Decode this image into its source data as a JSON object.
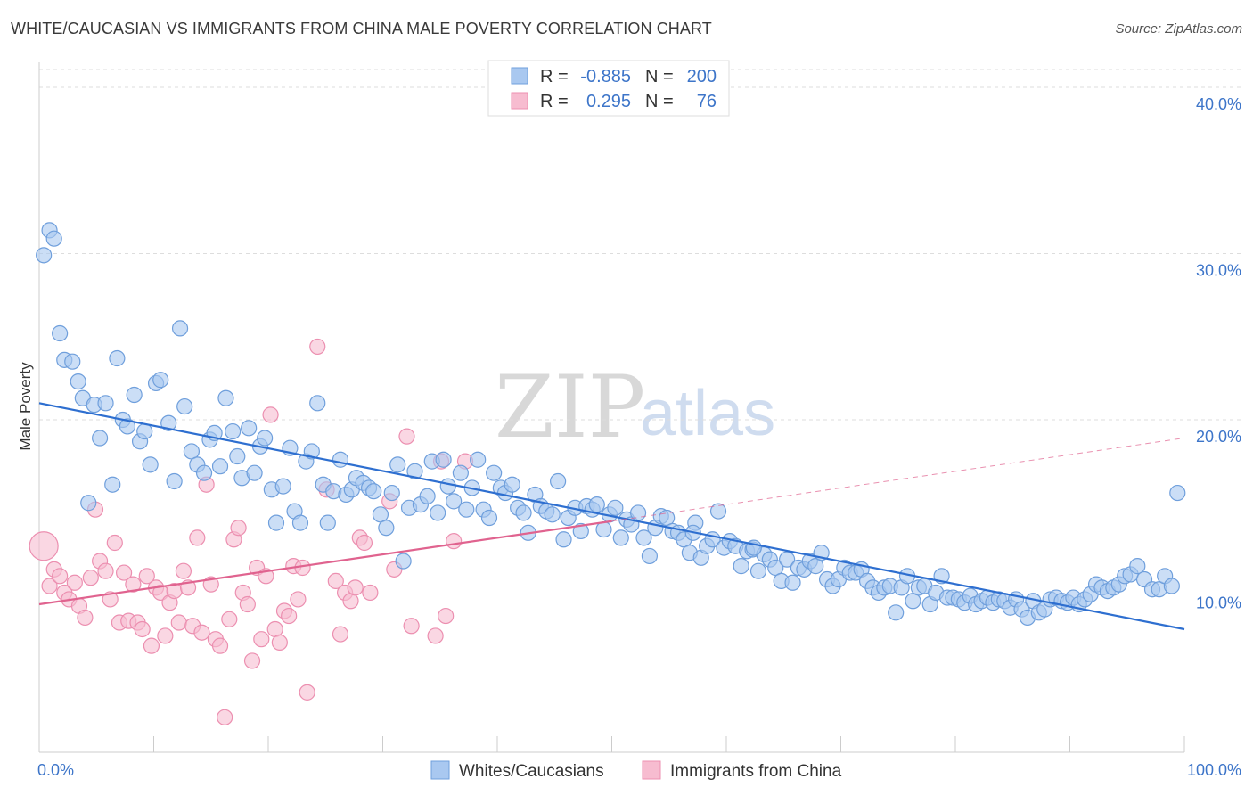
{
  "title": "WHITE/CAUCASIAN VS IMMIGRANTS FROM CHINA MALE POVERTY CORRELATION CHART",
  "source": "Source: ZipAtlas.com",
  "watermark": {
    "zip": "ZIP",
    "atlas": "atlas"
  },
  "colors": {
    "blue_fill": "#a9c8f0",
    "blue_stroke": "#6f9fdc",
    "blue_line": "#2e6fd0",
    "pink_fill": "#f7bcd0",
    "pink_stroke": "#ec8fb0",
    "pink_line": "#e0638f",
    "tick": "#3d75c9",
    "grid": "#dddddd"
  },
  "legend": {
    "rows": [
      {
        "r_label": "R =",
        "r_value": "-0.885",
        "n_label": "N =",
        "n_value": "200"
      },
      {
        "r_label": "R =",
        "r_value": "0.295",
        "n_label": "N =",
        "n_value": "76"
      }
    ]
  },
  "chart_data": {
    "type": "scatter",
    "xlabel": "",
    "ylabel": "Male Poverty",
    "xlim": [
      0,
      100
    ],
    "ylim": [
      0,
      41.5
    ],
    "x_tick_labels": [
      "0.0%",
      "100.0%"
    ],
    "y_ticks": [
      10,
      20,
      30,
      40
    ],
    "y_tick_labels": [
      "10.0%",
      "20.0%",
      "30.0%",
      "40.0%"
    ],
    "grid": "horizontal-dashed",
    "legend_position": "top-center",
    "series": [
      {
        "name": "Whites/Caucasians",
        "color": "#a9c8f0",
        "r": -0.885,
        "n": 200,
        "trend": {
          "x": [
            0,
            100
          ],
          "y": [
            21.0,
            7.4
          ],
          "style": "solid"
        },
        "points": [
          [
            0.4,
            29.9
          ],
          [
            0.9,
            31.4
          ],
          [
            1.3,
            30.9
          ],
          [
            1.8,
            25.2
          ],
          [
            2.2,
            23.6
          ],
          [
            2.9,
            23.5
          ],
          [
            3.4,
            22.3
          ],
          [
            3.8,
            21.3
          ],
          [
            4.3,
            15.0
          ],
          [
            4.8,
            20.9
          ],
          [
            5.3,
            18.9
          ],
          [
            5.8,
            21.0
          ],
          [
            6.4,
            16.1
          ],
          [
            6.8,
            23.7
          ],
          [
            7.3,
            20.0
          ],
          [
            7.7,
            19.6
          ],
          [
            8.3,
            21.5
          ],
          [
            8.8,
            18.7
          ],
          [
            9.2,
            19.3
          ],
          [
            9.7,
            17.3
          ],
          [
            10.2,
            22.2
          ],
          [
            10.6,
            22.4
          ],
          [
            11.3,
            19.8
          ],
          [
            11.8,
            16.3
          ],
          [
            12.3,
            25.5
          ],
          [
            12.7,
            20.8
          ],
          [
            13.3,
            18.1
          ],
          [
            13.8,
            17.3
          ],
          [
            14.4,
            16.8
          ],
          [
            14.9,
            18.8
          ],
          [
            15.3,
            19.2
          ],
          [
            15.8,
            17.2
          ],
          [
            16.3,
            21.3
          ],
          [
            16.9,
            19.3
          ],
          [
            17.3,
            17.8
          ],
          [
            17.7,
            16.5
          ],
          [
            18.3,
            19.5
          ],
          [
            18.8,
            16.8
          ],
          [
            19.3,
            18.4
          ],
          [
            19.7,
            18.9
          ],
          [
            20.3,
            15.8
          ],
          [
            20.7,
            13.8
          ],
          [
            21.3,
            16.0
          ],
          [
            21.9,
            18.3
          ],
          [
            22.3,
            14.5
          ],
          [
            22.8,
            13.8
          ],
          [
            23.3,
            17.5
          ],
          [
            23.8,
            18.1
          ],
          [
            24.3,
            21.0
          ],
          [
            24.8,
            16.1
          ],
          [
            25.2,
            13.8
          ],
          [
            25.7,
            15.7
          ],
          [
            26.3,
            17.6
          ],
          [
            26.8,
            15.5
          ],
          [
            27.3,
            15.8
          ],
          [
            27.7,
            16.5
          ],
          [
            28.3,
            16.2
          ],
          [
            28.8,
            15.9
          ],
          [
            29.2,
            15.7
          ],
          [
            29.8,
            14.3
          ],
          [
            30.3,
            13.5
          ],
          [
            30.8,
            15.6
          ],
          [
            31.3,
            17.3
          ],
          [
            31.8,
            11.5
          ],
          [
            32.3,
            14.7
          ],
          [
            32.8,
            16.9
          ],
          [
            33.3,
            14.9
          ],
          [
            33.9,
            15.4
          ],
          [
            34.3,
            17.5
          ],
          [
            34.8,
            14.4
          ],
          [
            35.3,
            17.6
          ],
          [
            35.7,
            16.0
          ],
          [
            36.2,
            15.1
          ],
          [
            36.8,
            16.8
          ],
          [
            37.3,
            14.6
          ],
          [
            37.8,
            15.9
          ],
          [
            38.3,
            17.6
          ],
          [
            38.8,
            14.6
          ],
          [
            39.3,
            14.1
          ],
          [
            39.7,
            16.8
          ],
          [
            40.3,
            15.9
          ],
          [
            40.7,
            15.6
          ],
          [
            41.3,
            16.1
          ],
          [
            41.8,
            14.7
          ],
          [
            42.3,
            14.4
          ],
          [
            42.7,
            13.2
          ],
          [
            43.3,
            15.5
          ],
          [
            43.8,
            14.8
          ],
          [
            44.3,
            14.5
          ],
          [
            44.8,
            14.3
          ],
          [
            45.3,
            16.3
          ],
          [
            45.8,
            12.8
          ],
          [
            46.2,
            14.1
          ],
          [
            46.8,
            14.7
          ],
          [
            47.3,
            13.3
          ],
          [
            47.8,
            14.8
          ],
          [
            48.3,
            14.6
          ],
          [
            48.7,
            14.9
          ],
          [
            49.3,
            13.4
          ],
          [
            49.8,
            14.3
          ],
          [
            50.3,
            14.7
          ],
          [
            50.8,
            12.9
          ],
          [
            51.3,
            14.0
          ],
          [
            51.7,
            13.7
          ],
          [
            52.3,
            14.4
          ],
          [
            52.8,
            12.9
          ],
          [
            53.3,
            11.8
          ],
          [
            53.8,
            13.5
          ],
          [
            54.3,
            14.2
          ],
          [
            54.8,
            14.1
          ],
          [
            55.3,
            13.3
          ],
          [
            55.8,
            13.2
          ],
          [
            56.3,
            12.8
          ],
          [
            56.8,
            12.0
          ],
          [
            57.3,
            13.8
          ],
          [
            57.8,
            11.7
          ],
          [
            58.3,
            12.4
          ],
          [
            58.8,
            12.8
          ],
          [
            59.3,
            14.5
          ],
          [
            59.8,
            12.3
          ],
          [
            60.3,
            12.7
          ],
          [
            60.8,
            12.4
          ],
          [
            61.3,
            11.2
          ],
          [
            61.8,
            12.1
          ],
          [
            62.3,
            12.2
          ],
          [
            62.8,
            10.9
          ],
          [
            63.3,
            11.9
          ],
          [
            63.8,
            11.6
          ],
          [
            64.3,
            11.1
          ],
          [
            64.8,
            10.3
          ],
          [
            65.3,
            11.6
          ],
          [
            65.8,
            10.2
          ],
          [
            66.3,
            11.1
          ],
          [
            66.8,
            11.0
          ],
          [
            67.3,
            11.5
          ],
          [
            67.8,
            11.2
          ],
          [
            68.3,
            12.0
          ],
          [
            68.8,
            10.4
          ],
          [
            69.3,
            10.0
          ],
          [
            69.8,
            10.4
          ],
          [
            70.3,
            11.1
          ],
          [
            70.8,
            10.8
          ],
          [
            71.3,
            10.8
          ],
          [
            71.8,
            11.0
          ],
          [
            72.3,
            10.3
          ],
          [
            72.8,
            9.9
          ],
          [
            73.3,
            9.6
          ],
          [
            73.8,
            9.9
          ],
          [
            74.3,
            10.0
          ],
          [
            74.8,
            8.4
          ],
          [
            75.3,
            9.9
          ],
          [
            75.8,
            10.6
          ],
          [
            76.3,
            9.1
          ],
          [
            76.8,
            9.9
          ],
          [
            77.3,
            10.0
          ],
          [
            77.8,
            8.9
          ],
          [
            78.3,
            9.6
          ],
          [
            78.8,
            10.6
          ],
          [
            79.3,
            9.3
          ],
          [
            79.8,
            9.3
          ],
          [
            80.3,
            9.2
          ],
          [
            80.8,
            9.0
          ],
          [
            81.3,
            9.4
          ],
          [
            81.8,
            8.9
          ],
          [
            82.3,
            9.1
          ],
          [
            82.8,
            9.3
          ],
          [
            83.3,
            9.0
          ],
          [
            83.8,
            9.2
          ],
          [
            84.3,
            9.1
          ],
          [
            84.8,
            8.7
          ],
          [
            85.3,
            9.2
          ],
          [
            85.8,
            8.6
          ],
          [
            86.3,
            8.1
          ],
          [
            86.8,
            9.1
          ],
          [
            87.3,
            8.4
          ],
          [
            87.8,
            8.6
          ],
          [
            88.3,
            9.2
          ],
          [
            88.8,
            9.3
          ],
          [
            89.3,
            9.1
          ],
          [
            89.8,
            9.0
          ],
          [
            90.3,
            9.3
          ],
          [
            90.8,
            8.9
          ],
          [
            91.3,
            9.2
          ],
          [
            91.8,
            9.5
          ],
          [
            92.3,
            10.1
          ],
          [
            92.8,
            9.9
          ],
          [
            93.3,
            9.7
          ],
          [
            93.8,
            9.9
          ],
          [
            94.3,
            10.1
          ],
          [
            94.8,
            10.6
          ],
          [
            95.3,
            10.7
          ],
          [
            95.9,
            11.2
          ],
          [
            96.5,
            10.4
          ],
          [
            97.2,
            9.8
          ],
          [
            97.8,
            9.8
          ],
          [
            98.3,
            10.6
          ],
          [
            98.9,
            10.0
          ],
          [
            99.4,
            15.6
          ],
          [
            57.1,
            13.2
          ],
          [
            62.4,
            12.3
          ]
        ]
      },
      {
        "name": "Immigrants from China",
        "color": "#f7bcd0",
        "r": 0.295,
        "n": 76,
        "trend": {
          "x": [
            0,
            50
          ],
          "y": [
            8.9,
            13.9
          ],
          "style": "solid"
        },
        "trend_extension": {
          "x": [
            50,
            100
          ],
          "y": [
            13.9,
            18.9
          ],
          "style": "dashed"
        },
        "points": [
          [
            0.4,
            12.4
          ],
          [
            0.9,
            10.0
          ],
          [
            1.3,
            11.0
          ],
          [
            1.8,
            10.6
          ],
          [
            2.2,
            9.6
          ],
          [
            2.6,
            9.2
          ],
          [
            3.1,
            10.2
          ],
          [
            3.5,
            8.8
          ],
          [
            4.0,
            8.1
          ],
          [
            4.5,
            10.5
          ],
          [
            4.9,
            14.6
          ],
          [
            5.3,
            11.5
          ],
          [
            5.8,
            10.9
          ],
          [
            6.2,
            9.2
          ],
          [
            6.6,
            12.6
          ],
          [
            7.0,
            7.8
          ],
          [
            7.4,
            10.8
          ],
          [
            7.8,
            7.9
          ],
          [
            8.2,
            10.1
          ],
          [
            8.6,
            7.8
          ],
          [
            9.0,
            7.4
          ],
          [
            9.4,
            10.6
          ],
          [
            9.8,
            6.4
          ],
          [
            10.2,
            9.9
          ],
          [
            10.6,
            9.6
          ],
          [
            11.0,
            7.0
          ],
          [
            11.4,
            9.0
          ],
          [
            11.8,
            9.7
          ],
          [
            12.2,
            7.8
          ],
          [
            12.6,
            10.9
          ],
          [
            13.0,
            9.9
          ],
          [
            13.4,
            7.6
          ],
          [
            13.8,
            12.9
          ],
          [
            14.2,
            7.2
          ],
          [
            14.6,
            16.1
          ],
          [
            15.0,
            10.1
          ],
          [
            15.4,
            6.8
          ],
          [
            15.8,
            6.4
          ],
          [
            16.2,
            2.1
          ],
          [
            16.6,
            8.0
          ],
          [
            17.0,
            12.8
          ],
          [
            17.4,
            13.5
          ],
          [
            17.8,
            9.6
          ],
          [
            18.2,
            8.9
          ],
          [
            18.6,
            5.5
          ],
          [
            19.0,
            11.1
          ],
          [
            19.4,
            6.8
          ],
          [
            19.8,
            10.6
          ],
          [
            20.2,
            20.3
          ],
          [
            20.6,
            7.4
          ],
          [
            21.0,
            6.6
          ],
          [
            21.4,
            8.5
          ],
          [
            21.8,
            8.2
          ],
          [
            22.2,
            11.2
          ],
          [
            22.6,
            9.2
          ],
          [
            23.0,
            11.1
          ],
          [
            23.4,
            3.6
          ],
          [
            24.3,
            24.4
          ],
          [
            25.1,
            15.8
          ],
          [
            25.9,
            10.3
          ],
          [
            26.3,
            7.1
          ],
          [
            26.7,
            9.6
          ],
          [
            27.2,
            9.1
          ],
          [
            27.6,
            9.9
          ],
          [
            28.0,
            12.9
          ],
          [
            28.4,
            12.6
          ],
          [
            28.9,
            9.6
          ],
          [
            30.6,
            15.1
          ],
          [
            31.0,
            11.0
          ],
          [
            32.1,
            19.0
          ],
          [
            32.5,
            7.6
          ],
          [
            34.6,
            7.0
          ],
          [
            35.1,
            17.5
          ],
          [
            37.2,
            17.5
          ],
          [
            36.2,
            12.7
          ],
          [
            35.5,
            8.2
          ]
        ]
      }
    ]
  }
}
